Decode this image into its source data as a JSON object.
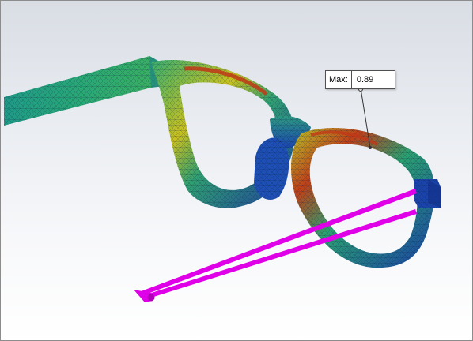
{
  "viewport": {
    "model": "eyeglasses-frame-mesh-result"
  },
  "probe": {
    "label": "Max:",
    "value": "0.89"
  },
  "colors": {
    "mesh_low": "#1a3fa8",
    "mesh_mid": "#20a878",
    "mesh_high_mid": "#c8d020",
    "mesh_high": "#c83010",
    "load_arrows": "#e000e8"
  }
}
